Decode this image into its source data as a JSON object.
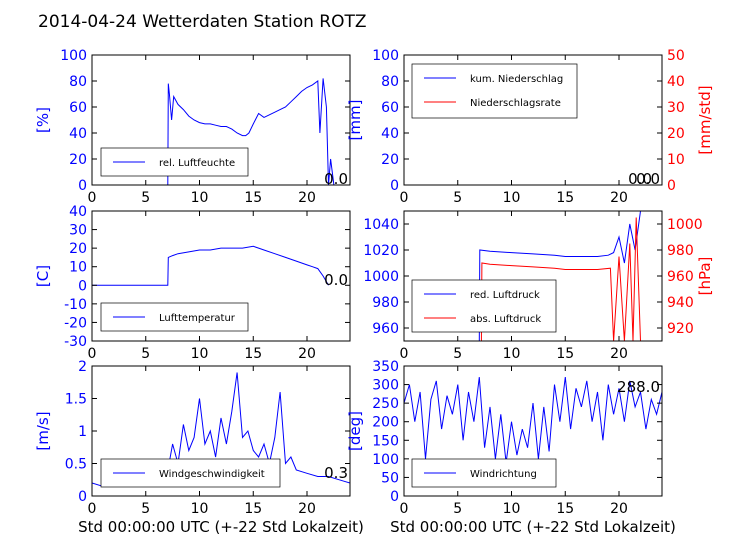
{
  "title": "2014-04-24 Wetterdaten Station ROTZ",
  "colors": {
    "primary": "#0000ff",
    "secondary": "#ff0000",
    "axis": "#000000"
  },
  "chart_data": [
    {
      "id": "humidity",
      "type": "line",
      "xlim": [
        0,
        24
      ],
      "xticks": [
        0,
        5,
        10,
        15,
        20
      ],
      "ylim": [
        0,
        100
      ],
      "yticks": [
        0,
        20,
        40,
        60,
        80,
        100
      ],
      "ylabel": "[%]",
      "legend": {
        "position": "lower-left",
        "entries": [
          "rel. Luftfeuchte"
        ]
      },
      "current_value": "0.0",
      "series": [
        {
          "name": "rel. Luftfeuchte",
          "color": "#0000ff",
          "x": [
            0,
            7.05,
            7.1,
            7.2,
            7.4,
            7.6,
            8,
            8.5,
            9,
            9.5,
            10,
            10.5,
            11,
            11.5,
            12,
            12.5,
            13,
            13.5,
            14,
            14.3,
            14.6,
            15,
            15.5,
            16,
            16.5,
            17,
            17.5,
            18,
            18.5,
            19,
            19.5,
            20,
            20.5,
            21,
            21.2,
            21.5,
            21.8,
            22,
            22.2,
            22.5
          ],
          "y": [
            0,
            0,
            78,
            70,
            50,
            68,
            62,
            58,
            53,
            50,
            48,
            47,
            47,
            46,
            45,
            45,
            43,
            40,
            38,
            38,
            40,
            47,
            55,
            52,
            54,
            56,
            58,
            60,
            64,
            68,
            72,
            75,
            77,
            80,
            40,
            82,
            60,
            0,
            20,
            0
          ]
        }
      ]
    },
    {
      "id": "precip",
      "type": "line",
      "xlim": [
        0,
        24
      ],
      "xticks": [
        0,
        5,
        10,
        15,
        20
      ],
      "ylim": [
        0,
        100
      ],
      "yticks": [
        0,
        20,
        40,
        60,
        80,
        100
      ],
      "ylabel": "[mm]",
      "y2lim": [
        0,
        50
      ],
      "y2ticks": [
        0,
        10,
        20,
        30,
        40,
        50
      ],
      "y2label": "[mm/std]",
      "legend": {
        "position": "upper-left",
        "entries": [
          "kum. Niederschlag",
          "Niederschlagsrate"
        ]
      },
      "current_value": "0.0",
      "current_value_2": "0.0",
      "series": [
        {
          "name": "kum. Niederschlag",
          "color": "#0000ff",
          "axis": "left",
          "x": [
            0,
            24
          ],
          "y": [
            0,
            0
          ]
        },
        {
          "name": "Niederschlagsrate",
          "color": "#ff0000",
          "axis": "right",
          "x": [
            0,
            24
          ],
          "y": [
            0,
            0
          ]
        }
      ]
    },
    {
      "id": "temperature",
      "type": "line",
      "xlim": [
        0,
        24
      ],
      "xticks": [
        0,
        5,
        10,
        15,
        20
      ],
      "ylim": [
        -30,
        40
      ],
      "yticks": [
        -30,
        -20,
        -10,
        0,
        10,
        20,
        30,
        40
      ],
      "ylabel": "[C]",
      "legend": {
        "position": "lower-left",
        "entries": [
          "Lufttemperatur"
        ]
      },
      "current_value": "0.0",
      "series": [
        {
          "name": "Lufttemperatur",
          "color": "#0000ff",
          "x": [
            0,
            7.05,
            7.1,
            7.5,
            8,
            9,
            10,
            11,
            12,
            13,
            14,
            15,
            15.5,
            16,
            17,
            18,
            19,
            20,
            20.5,
            21,
            21.5,
            22
          ],
          "y": [
            0,
            0,
            15,
            16,
            17,
            18,
            19,
            19,
            20,
            20,
            20,
            21,
            20,
            19,
            17,
            15,
            13,
            11,
            10,
            9,
            5,
            0
          ]
        }
      ]
    },
    {
      "id": "pressure",
      "type": "line",
      "xlim": [
        0,
        24
      ],
      "xticks": [
        0,
        5,
        10,
        15,
        20
      ],
      "ylim": [
        950,
        1050
      ],
      "yticks": [
        960,
        980,
        1000,
        1020,
        1040
      ],
      "ylabel": "",
      "y2lim": [
        910,
        1010
      ],
      "y2ticks": [
        920,
        940,
        960,
        980,
        1000
      ],
      "y2label": "[hPa]",
      "legend": {
        "position": "lower-left",
        "entries": [
          "red. Luftdruck",
          "abs. Luftdruck"
        ]
      },
      "series": [
        {
          "name": "red. Luftdruck",
          "color": "#0000ff",
          "axis": "left",
          "x": [
            7.0,
            7.05,
            8,
            10,
            12,
            14,
            15,
            16,
            18,
            19,
            19.5,
            20,
            20.5,
            21,
            21.5,
            22
          ],
          "y": [
            950,
            1020,
            1019,
            1018,
            1017,
            1016,
            1015,
            1015,
            1015,
            1016,
            1018,
            1030,
            1010,
            1040,
            1020,
            1050
          ]
        },
        {
          "name": "abs. Luftdruck",
          "color": "#ff0000",
          "axis": "right",
          "x": [
            7.2,
            7.25,
            8,
            10,
            12,
            14,
            15,
            16,
            18,
            19.2,
            19.5,
            20,
            20.5,
            21,
            21.3,
            21.6,
            22
          ],
          "y": [
            910,
            970,
            969,
            968,
            967,
            966,
            965,
            965,
            965,
            966,
            910,
            975,
            910,
            985,
            910,
            1005,
            910
          ]
        }
      ]
    },
    {
      "id": "wind",
      "type": "line",
      "xlim": [
        0,
        24
      ],
      "xticks": [
        0,
        5,
        10,
        15,
        20
      ],
      "ylim": [
        0,
        2.0
      ],
      "yticks": [
        0.0,
        0.5,
        1.0,
        1.5,
        2.0
      ],
      "ylabel": "[m/s]",
      "xlabel": "Std 00:00:00 UTC (+-22 Std Lokalzeit)",
      "legend": {
        "position": "lower-left",
        "entries": [
          "Windgeschwindigkeit"
        ]
      },
      "current_value": "0.3",
      "series": [
        {
          "name": "Windgeschwindigkeit",
          "color": "#0000ff",
          "x": [
            0,
            1,
            2,
            3,
            4,
            5,
            6,
            7,
            7.5,
            8,
            8.5,
            9,
            9.5,
            10,
            10.5,
            11,
            11.5,
            12,
            12.5,
            13,
            13.5,
            14,
            14.5,
            15,
            15.5,
            16,
            16.5,
            17,
            17.5,
            18,
            18.5,
            19,
            20,
            21,
            22,
            23,
            24
          ],
          "y": [
            0.2,
            0.15,
            0.25,
            0.2,
            0.3,
            0.2,
            0.25,
            0.35,
            0.8,
            0.5,
            1.1,
            0.7,
            0.9,
            1.5,
            0.8,
            1.0,
            0.6,
            1.2,
            0.8,
            1.3,
            1.9,
            0.9,
            1.0,
            0.7,
            0.6,
            0.8,
            0.5,
            0.9,
            1.6,
            0.5,
            0.6,
            0.4,
            0.35,
            0.3,
            0.3,
            0.25,
            0.2
          ]
        }
      ]
    },
    {
      "id": "direction",
      "type": "line",
      "xlim": [
        0,
        24
      ],
      "xticks": [
        0,
        5,
        10,
        15,
        20
      ],
      "ylim": [
        0,
        350
      ],
      "yticks": [
        0,
        50,
        100,
        150,
        200,
        250,
        300,
        350
      ],
      "ylabel": "[deg]",
      "xlabel": "Std 00:00:00 UTC (+-22 Std Lokalzeit)",
      "legend": {
        "position": "lower-left",
        "entries": [
          "Windrichtung"
        ]
      },
      "current_value": "288.0",
      "series": [
        {
          "name": "Windrichtung",
          "color": "#0000ff",
          "x": [
            0,
            0.5,
            1,
            1.5,
            2,
            2.5,
            3,
            3.5,
            4,
            4.5,
            5,
            5.5,
            6,
            6.5,
            7,
            7.5,
            8,
            8.5,
            9,
            9.5,
            10,
            10.5,
            11,
            11.5,
            12,
            12.5,
            13,
            13.5,
            14,
            14.5,
            15,
            15.5,
            16,
            16.5,
            17,
            17.5,
            18,
            18.5,
            19,
            19.5,
            20,
            20.5,
            21,
            21.5,
            22,
            22.5,
            23,
            23.5,
            24
          ],
          "y": [
            250,
            300,
            200,
            280,
            100,
            260,
            310,
            180,
            270,
            220,
            300,
            150,
            280,
            200,
            320,
            130,
            240,
            100,
            220,
            90,
            200,
            110,
            180,
            130,
            250,
            100,
            240,
            120,
            300,
            200,
            320,
            180,
            290,
            240,
            310,
            200,
            280,
            150,
            300,
            220,
            290,
            200,
            310,
            240,
            280,
            180,
            260,
            220,
            280
          ]
        }
      ]
    }
  ]
}
